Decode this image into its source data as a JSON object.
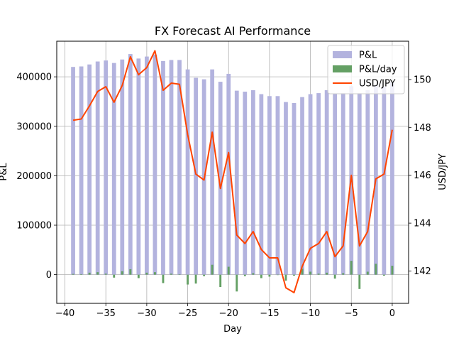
{
  "chart_data": {
    "type": "bar+line",
    "title": "FX Forecast AI Performance",
    "xlabel": "Day",
    "ylabel_left": "P&L",
    "ylabel_right": "USD/JPY",
    "xlim": [
      -41,
      2
    ],
    "ylim_left": [
      -58000,
      472000
    ],
    "ylim_right": [
      140.65,
      151.6
    ],
    "x_ticks": [
      -40,
      -35,
      -30,
      -25,
      -20,
      -15,
      -10,
      -5,
      0
    ],
    "y_left_ticks": [
      0,
      100000,
      200000,
      300000,
      400000
    ],
    "y_right_ticks": [
      142,
      144,
      146,
      148,
      150
    ],
    "grid": true,
    "legend_position": "top-right",
    "x": [
      -39,
      -38,
      -37,
      -36,
      -35,
      -34,
      -33,
      -32,
      -31,
      -30,
      -29,
      -28,
      -27,
      -26,
      -25,
      -24,
      -23,
      -22,
      -21,
      -20,
      -19,
      -18,
      -17,
      -16,
      -15,
      -14,
      -13,
      -12,
      -11,
      -10,
      -9,
      -8,
      -7,
      -6,
      -5,
      -4,
      -3,
      -2,
      -1,
      0
    ],
    "series": [
      {
        "name": "P&L",
        "type": "bar",
        "axis": "left",
        "color": "#b3b3de",
        "values": [
          420000,
          421000,
          425000,
          431000,
          433000,
          428000,
          435000,
          446000,
          437000,
          441000,
          445000,
          432000,
          434000,
          434000,
          415000,
          398000,
          395000,
          415000,
          390000,
          406000,
          372000,
          370000,
          373000,
          365000,
          361000,
          361000,
          349000,
          347000,
          359000,
          365000,
          367000,
          373000,
          365000,
          367000,
          381000,
          367000,
          373000,
          383000,
          381000,
          390000
        ]
      },
      {
        "name": "P&L/day",
        "type": "bar",
        "axis": "left",
        "color": "#64a064",
        "values": [
          1500,
          1000,
          4000,
          5000,
          2000,
          -6000,
          7000,
          11000,
          -7000,
          4000,
          5000,
          -17000,
          2000,
          500,
          -20000,
          -18000,
          -3000,
          20000,
          -25000,
          16000,
          -34000,
          -3000,
          3000,
          -7000,
          -4000,
          -500,
          -12000,
          -2000,
          12000,
          6000,
          2000,
          4000,
          -8000,
          3000,
          28000,
          -29000,
          6000,
          22000,
          -2000,
          18000
        ]
      },
      {
        "name": "USD/JPY",
        "type": "line",
        "axis": "right",
        "color": "#ff4400",
        "values": [
          148.3,
          148.35,
          148.9,
          149.5,
          149.7,
          149.05,
          149.75,
          150.95,
          150.2,
          150.5,
          151.2,
          149.55,
          149.85,
          149.8,
          147.7,
          146.05,
          145.8,
          147.8,
          145.45,
          146.95,
          143.5,
          143.15,
          143.65,
          142.9,
          142.55,
          142.55,
          141.3,
          141.1,
          142.2,
          142.95,
          143.15,
          143.65,
          142.6,
          143.05,
          146,
          143.05,
          143.65,
          145.85,
          146.05,
          147.9
        ]
      }
    ]
  }
}
